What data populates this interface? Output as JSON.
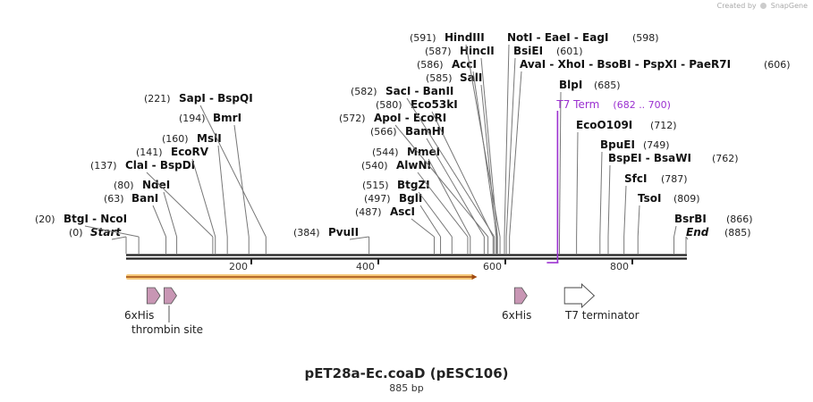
{
  "credit": {
    "prefix": "Created by",
    "brand": "SnapGene"
  },
  "title": "pET28a-Ec.coaD (pESC106)",
  "length_label": "885 bp",
  "sequence_length": 885,
  "ticks": [
    "200",
    "400",
    "600",
    "800"
  ],
  "enzymes": [
    {
      "pos": "(0)",
      "name": "Start",
      "end": true,
      "site": 0
    },
    {
      "pos": "(20)",
      "name": "BtgI  -  NcoI",
      "site": 20
    },
    {
      "pos": "(63)",
      "name": "BanI",
      "site": 63
    },
    {
      "pos": "(80)",
      "name": "NdeI",
      "site": 80
    },
    {
      "pos": "(137)",
      "name": "ClaI  -  BspDI",
      "site": 137
    },
    {
      "pos": "(141)",
      "name": "EcoRV",
      "site": 141
    },
    {
      "pos": "(160)",
      "name": "MslI",
      "site": 160
    },
    {
      "pos": "(194)",
      "name": "BmrI",
      "site": 194
    },
    {
      "pos": "(221)",
      "name": "SapI  -  BspQI",
      "site": 221
    },
    {
      "pos": "(384)",
      "name": "PvuII",
      "site": 384
    },
    {
      "pos": "(487)",
      "name": "AscI",
      "site": 487
    },
    {
      "pos": "(497)",
      "name": "BglI",
      "site": 497
    },
    {
      "pos": "(515)",
      "name": "BtgZI",
      "site": 515
    },
    {
      "pos": "(540)",
      "name": "AlwNI",
      "site": 540
    },
    {
      "pos": "(544)",
      "name": "MmeI",
      "site": 544
    },
    {
      "pos": "(566)",
      "name": "BamHI",
      "site": 566
    },
    {
      "pos": "(572)",
      "name": "ApoI  -  EcoRI",
      "site": 572
    },
    {
      "pos": "(580)",
      "name": "Eco53kI",
      "site": 580
    },
    {
      "pos": "(582)",
      "name": "SacI  -  BanII",
      "site": 582
    },
    {
      "pos": "(585)",
      "name": "SalI",
      "site": 585
    },
    {
      "pos": "(586)",
      "name": "AccI",
      "site": 586
    },
    {
      "pos": "(587)",
      "name": "HincII",
      "site": 587
    },
    {
      "pos": "(591)",
      "name": "HindIII",
      "site": 591
    },
    {
      "pos": "(598)",
      "name": "NotI  -  EaeI  -  EagI",
      "site": 598
    },
    {
      "pos": "(601)",
      "name": "BsiEI",
      "site": 601
    },
    {
      "pos": "(606)",
      "name": "AvaI  -  XhoI  -  BsoBI  -  PspXI  -  PaeR7I",
      "site": 606
    },
    {
      "pos": "(685)",
      "name": "BlpI",
      "site": 685
    },
    {
      "pos": "(712)",
      "name": "EcoO109I",
      "site": 712
    },
    {
      "pos": "(749)",
      "name": "BpuEI",
      "site": 749
    },
    {
      "pos": "(762)",
      "name": "BspEI  -  BsaWI",
      "site": 762
    },
    {
      "pos": "(787)",
      "name": "SfcI",
      "site": 787
    },
    {
      "pos": "(809)",
      "name": "TsoI",
      "site": 809
    },
    {
      "pos": "(866)",
      "name": "BsrBI",
      "site": 866
    },
    {
      "pos": "(885)",
      "name": "End",
      "end": true,
      "site": 885
    }
  ],
  "t7_term": {
    "name": "T7 Term",
    "range": "(682 .. 700)",
    "color": "#9b30d0"
  },
  "orf": {
    "start": 0,
    "end": 555,
    "color": "#e8a33a"
  },
  "features": [
    {
      "name": "6xHis",
      "start": 33,
      "end": 51,
      "kind": "tag",
      "color": "#c896b4"
    },
    {
      "name": "thrombin site",
      "start": 60,
      "end": 77,
      "kind": "tag",
      "color": "#c896b4"
    },
    {
      "name": "6xHis",
      "start": 614,
      "end": 631,
      "kind": "tag",
      "color": "#c896b4"
    },
    {
      "name": "T7 terminator",
      "start": 693,
      "end": 740,
      "kind": "terminator",
      "color": "#ffffff"
    }
  ]
}
